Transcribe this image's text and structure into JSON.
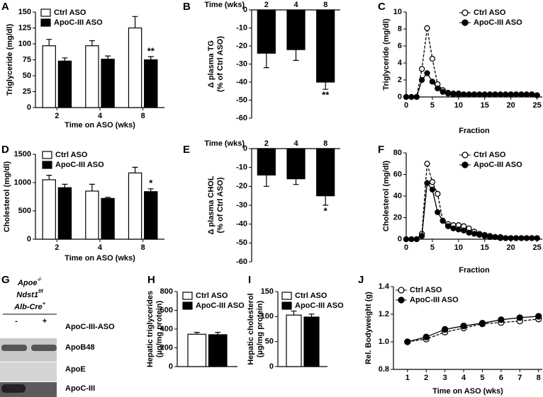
{
  "chart_data": [
    {
      "type": "bar",
      "panel": "A",
      "ylabel": [
        "Triglyceride (mg/dl)"
      ],
      "xlabel": "Time on ASO (wks)",
      "categories": [
        "2",
        "4",
        "8"
      ],
      "series": [
        {
          "name": "Ctrl ASO",
          "color": "#ffffff",
          "values": [
            97,
            97,
            125
          ],
          "errors": [
            10,
            8,
            18
          ]
        },
        {
          "name": "ApoC-III ASO",
          "color": "#000000",
          "values": [
            73,
            76,
            75
          ],
          "errors": [
            5,
            5,
            5
          ]
        }
      ],
      "ylim": [
        0,
        150
      ],
      "yticks": [
        0,
        25,
        50,
        75,
        100,
        125,
        150
      ],
      "annotations": [
        {
          "text": "**",
          "x": "8"
        }
      ]
    },
    {
      "type": "bar",
      "panel": "B",
      "ylabel": [
        "Δ plasma TG",
        "(% of Ctrl ASO)"
      ],
      "xlabel": "Time (wks)",
      "categories": [
        "2",
        "4",
        "8"
      ],
      "color": "#000000",
      "values": [
        -24,
        -22,
        -40
      ],
      "errors": [
        8,
        6,
        4
      ],
      "ylim": [
        -60,
        0
      ],
      "yticks": [
        0,
        -10,
        -20,
        -30,
        -40,
        -50,
        -60
      ],
      "annotations": [
        {
          "text": "**",
          "x": "8"
        }
      ]
    },
    {
      "type": "line",
      "panel": "C",
      "ylabel": [
        "Triglyceride (mg/dl)"
      ],
      "xlabel": "Fraction",
      "x": [
        0,
        1,
        2,
        3,
        4,
        5,
        6,
        7,
        8,
        9,
        10,
        11,
        12,
        13,
        14,
        15,
        16,
        17,
        18,
        19,
        20,
        21,
        22,
        23,
        24,
        25
      ],
      "series": [
        {
          "name": "Ctrl ASO",
          "color": "#000000",
          "marker_fill": "#ffffff",
          "dash": true,
          "values": [
            0,
            0,
            0,
            3.3,
            8.1,
            4.5,
            1.5,
            0.8,
            0.5,
            0.4,
            0.4,
            0.3,
            0.3,
            0.3,
            0.3,
            0.3,
            0.3,
            0.3,
            0.3,
            0.3,
            0.3,
            0.3,
            0.3,
            0.3,
            0.3,
            0.2
          ]
        },
        {
          "name": "ApoC-III ASO",
          "color": "#000000",
          "marker_fill": "#000000",
          "dash": false,
          "values": [
            0,
            0,
            0,
            2.0,
            2.8,
            1.8,
            1.0,
            0.6,
            0.4,
            0.3,
            0.3,
            0.3,
            0.3,
            0.3,
            0.3,
            0.3,
            0.3,
            0.3,
            0.3,
            0.3,
            0.3,
            0.3,
            0.3,
            0.3,
            0.3,
            0.2
          ]
        }
      ],
      "xlim": [
        0,
        26
      ],
      "xticks": [
        0,
        5,
        10,
        15,
        20,
        25
      ],
      "ylim": [
        0,
        10
      ],
      "yticks": [
        0,
        2,
        4,
        6,
        8,
        10
      ]
    },
    {
      "type": "bar",
      "panel": "D",
      "ylabel": [
        "Cholesterol (mg/dl)"
      ],
      "xlabel": "Time on ASO (wks)",
      "categories": [
        "2",
        "4",
        "8"
      ],
      "series": [
        {
          "name": "Ctrl ASO",
          "color": "#ffffff",
          "values": [
            1050,
            850,
            1170
          ],
          "errors": [
            80,
            120,
            100
          ]
        },
        {
          "name": "ApoC-III ASO",
          "color": "#000000",
          "values": [
            910,
            720,
            840
          ],
          "errors": [
            60,
            20,
            50
          ]
        }
      ],
      "ylim": [
        0,
        1500
      ],
      "yticks": [
        0,
        500,
        1000,
        1500
      ],
      "annotations": [
        {
          "text": "*",
          "x": "8"
        }
      ]
    },
    {
      "type": "bar",
      "panel": "E",
      "ylabel": [
        "Δ plasma CHOL",
        "(% of Ctrl ASO)"
      ],
      "xlabel": "Time (wks)",
      "categories": [
        "2",
        "4",
        "8"
      ],
      "color": "#000000",
      "values": [
        -14,
        -16,
        -25
      ],
      "errors": [
        6,
        3,
        5
      ],
      "ylim": [
        -60,
        0
      ],
      "yticks": [
        0,
        -10,
        -20,
        -30,
        -40,
        -50,
        -60
      ],
      "annotations": [
        {
          "text": "*",
          "x": "8"
        }
      ]
    },
    {
      "type": "line",
      "panel": "F",
      "ylabel": [
        "Cholesterol (mg/dl)"
      ],
      "xlabel": "Fraction",
      "x": [
        0,
        1,
        2,
        3,
        4,
        5,
        6,
        7,
        8,
        9,
        10,
        11,
        12,
        13,
        14,
        15,
        16,
        17,
        18,
        19,
        20,
        21,
        22,
        23,
        24,
        25
      ],
      "series": [
        {
          "name": "Ctrl ASO",
          "color": "#000000",
          "marker_fill": "#ffffff",
          "dash": true,
          "values": [
            0,
            0,
            0,
            5,
            70,
            53,
            42,
            17,
            14,
            13,
            13,
            12,
            10,
            7,
            5,
            4,
            3,
            2,
            2,
            1,
            1,
            1,
            1,
            1,
            1,
            1
          ]
        },
        {
          "name": "ApoC-III ASO",
          "color": "#000000",
          "marker_fill": "#000000",
          "dash": false,
          "values": [
            0,
            0,
            0,
            3,
            52,
            46,
            25,
            17,
            12,
            10,
            9,
            8,
            6,
            5,
            4,
            3,
            2,
            2,
            1,
            1,
            1,
            1,
            1,
            1,
            1,
            1
          ]
        }
      ],
      "xlim": [
        0,
        26
      ],
      "xticks": [
        0,
        5,
        10,
        15,
        20,
        25
      ],
      "ylim": [
        0,
        80
      ],
      "yticks": [
        0,
        20,
        40,
        60,
        80
      ]
    },
    {
      "type": "bar",
      "panel": "H",
      "ylabel": [
        "Hepatic triglycerides",
        "(µg/mg protein)"
      ],
      "categories": [
        null
      ],
      "series": [
        {
          "name": "Ctrl ASO",
          "color": "#ffffff",
          "values": [
            345
          ],
          "errors": [
            20
          ]
        },
        {
          "name": "ApoC-III ASO",
          "color": "#000000",
          "values": [
            340
          ],
          "errors": [
            25
          ]
        }
      ],
      "ylim": [
        0,
        800
      ],
      "yticks": [
        0,
        200,
        400,
        600,
        800
      ]
    },
    {
      "type": "bar",
      "panel": "I",
      "ylabel": [
        "Hepatic cholesterol",
        "(µg/mg protein)"
      ],
      "categories": [
        null
      ],
      "series": [
        {
          "name": "Ctrl ASO",
          "color": "#ffffff",
          "values": [
            103
          ],
          "errors": [
            8
          ]
        },
        {
          "name": "ApoC-III ASO",
          "color": "#000000",
          "values": [
            99
          ],
          "errors": [
            6
          ]
        }
      ],
      "ylim": [
        0,
        150
      ],
      "yticks": [
        0,
        50,
        100,
        150
      ]
    },
    {
      "type": "line",
      "panel": "J",
      "ylabel": [
        "Rel. Bodyweight (g)"
      ],
      "xlabel": "Time on ASO (wks)",
      "x": [
        1,
        2,
        3,
        4,
        5,
        6,
        7,
        8
      ],
      "series": [
        {
          "name": "Ctrl ASO",
          "color": "#000000",
          "marker_fill": "#ffffff",
          "dash": true,
          "values": [
            1.0,
            1.02,
            1.07,
            1.1,
            1.13,
            1.14,
            1.15,
            1.165
          ]
        },
        {
          "name": "ApoC-III ASO",
          "color": "#000000",
          "marker_fill": "#000000",
          "dash": false,
          "values": [
            1.0,
            1.035,
            1.09,
            1.115,
            1.135,
            1.16,
            1.175,
            1.185
          ]
        }
      ],
      "xlim": [
        0.25,
        8.2
      ],
      "xticks": [
        1,
        2,
        3,
        4,
        5,
        6,
        7,
        8
      ],
      "ylim": [
        0.8,
        1.4
      ],
      "yticks": [
        0.8,
        {
          "value": 1.0,
          "label": "1.0"
        },
        1.2,
        1.4
      ]
    }
  ],
  "blot": {
    "panel": "G",
    "genotype": [
      {
        "text": "Apoe",
        "sup": "-/-"
      },
      {
        "text": "Ndst1",
        "sup": "f/f"
      },
      {
        "text": "Alb-Cre",
        "sup": "+"
      }
    ],
    "lanes": [
      "-",
      "+"
    ],
    "treatment": "ApoC-III-ASO",
    "bands": [
      "ApoB48",
      "ApoE",
      "ApoC-III"
    ]
  }
}
